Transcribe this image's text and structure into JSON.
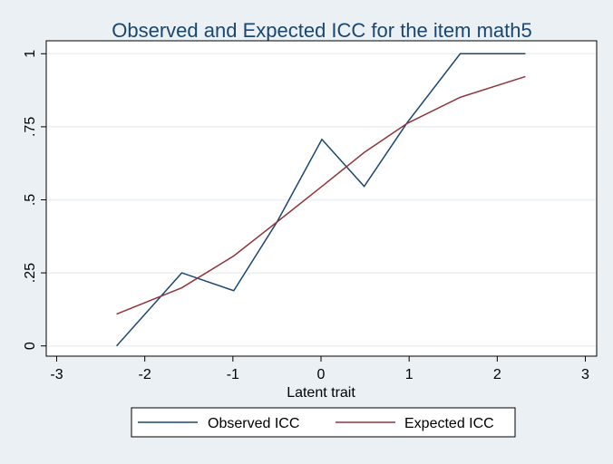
{
  "chart_data": {
    "type": "line",
    "title": "Observed and Expected ICC for the item math5",
    "xlabel": "Latent trait",
    "ylabel": "",
    "xlim": [
      -3,
      3
    ],
    "ylim": [
      0,
      1
    ],
    "xticks": [
      "-3",
      "-2",
      "-1",
      "0",
      "1",
      "2",
      "3"
    ],
    "xtick_values": [
      -3,
      -2,
      -1,
      0,
      1,
      2,
      3
    ],
    "yticks": [
      "0",
      ".25",
      ".5",
      ".75",
      "1"
    ],
    "ytick_values": [
      0,
      0.25,
      0.5,
      0.75,
      1
    ],
    "grid": "horizontal",
    "legend_position": "bottom",
    "x": [
      -2.32,
      -1.58,
      -0.99,
      -0.5,
      0.01,
      0.49,
      0.98,
      1.58,
      2.32
    ],
    "series": [
      {
        "name": "Observed ICC",
        "color": "#1a476f",
        "values": [
          0,
          0.25,
          0.189,
          0.424,
          0.707,
          0.546,
          0.765,
          1,
          1
        ]
      },
      {
        "name": "Expected ICC",
        "color": "#90353b",
        "values": [
          0.109,
          0.199,
          0.308,
          0.424,
          0.546,
          0.662,
          0.762,
          0.851,
          0.922
        ]
      }
    ]
  }
}
